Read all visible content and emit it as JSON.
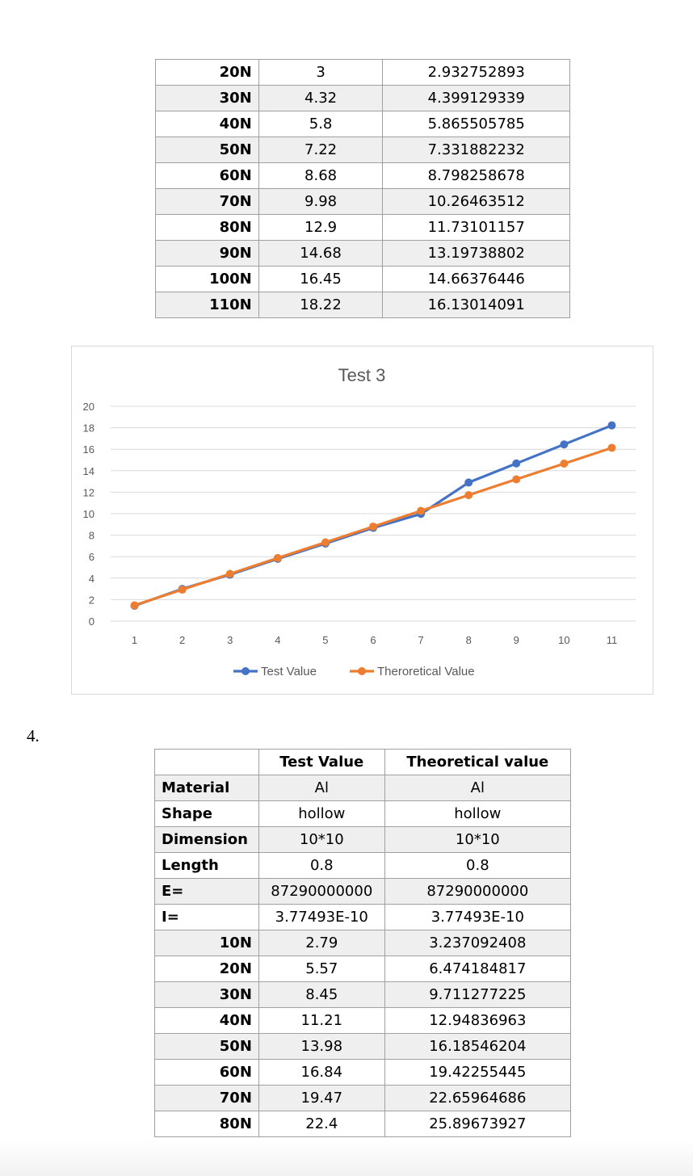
{
  "table_top": {
    "rows": [
      {
        "label": "20N",
        "test": "3",
        "theory": "2.932752893"
      },
      {
        "label": "30N",
        "test": "4.32",
        "theory": "4.399129339"
      },
      {
        "label": "40N",
        "test": "5.8",
        "theory": "5.865505785"
      },
      {
        "label": "50N",
        "test": "7.22",
        "theory": "7.331882232"
      },
      {
        "label": "60N",
        "test": "8.68",
        "theory": "8.798258678"
      },
      {
        "label": "70N",
        "test": "9.98",
        "theory": "10.26463512"
      },
      {
        "label": "80N",
        "test": "12.9",
        "theory": "11.73101157"
      },
      {
        "label": "90N",
        "test": "14.68",
        "theory": "13.19738802"
      },
      {
        "label": "100N",
        "test": "16.45",
        "theory": "14.66376446"
      },
      {
        "label": "110N",
        "test": "18.22",
        "theory": "16.13014091"
      }
    ]
  },
  "chart_data": {
    "type": "line",
    "title": "Test 3",
    "x": [
      1,
      2,
      3,
      4,
      5,
      6,
      7,
      8,
      9,
      10,
      11
    ],
    "x_tick_labels": [
      "1",
      "2",
      "3",
      "4",
      "5",
      "6",
      "7",
      "8",
      "9",
      "10",
      "11"
    ],
    "y_tick_labels": [
      "0",
      "2",
      "4",
      "6",
      "8",
      "10",
      "12",
      "14",
      "16",
      "18",
      "20"
    ],
    "ylim": [
      0,
      20
    ],
    "grid": true,
    "legend_position": "bottom",
    "series": [
      {
        "name": "Test Value",
        "color": "#4472C4",
        "values": [
          1.43,
          3,
          4.32,
          5.8,
          7.22,
          8.68,
          9.98,
          12.9,
          14.68,
          16.45,
          18.22
        ]
      },
      {
        "name": "Theroretical Value",
        "color": "#ED7D31",
        "values": [
          1.47,
          2.93,
          4.4,
          5.87,
          7.33,
          8.8,
          10.26,
          11.73,
          13.2,
          14.66,
          16.13
        ]
      }
    ]
  },
  "section_number": "4.",
  "table_bottom": {
    "header": {
      "test": "Test Value",
      "theory": "Theoretical value"
    },
    "props": [
      {
        "label": "Material",
        "test": "Al",
        "theory": "Al"
      },
      {
        "label": "Shape",
        "test": "hollow",
        "theory": "hollow"
      },
      {
        "label": "Dimension",
        "test": "10*10",
        "theory": "10*10"
      },
      {
        "label": "Length",
        "test": "0.8",
        "theory": "0.8"
      },
      {
        "label": "E=",
        "test": "87290000000",
        "theory": "87290000000"
      },
      {
        "label": "I=",
        "test": "3.77493E-10",
        "theory": "3.77493E-10"
      }
    ],
    "loads": [
      {
        "label": "10N",
        "test": "2.79",
        "theory": "3.237092408"
      },
      {
        "label": "20N",
        "test": "5.57",
        "theory": "6.474184817"
      },
      {
        "label": "30N",
        "test": "8.45",
        "theory": "9.711277225"
      },
      {
        "label": "40N",
        "test": "11.21",
        "theory": "12.94836963"
      },
      {
        "label": "50N",
        "test": "13.98",
        "theory": "16.18546204"
      },
      {
        "label": "60N",
        "test": "16.84",
        "theory": "19.42255445"
      },
      {
        "label": "70N",
        "test": "19.47",
        "theory": "22.65964686"
      },
      {
        "label": "80N",
        "test": "22.4",
        "theory": "25.89673927"
      }
    ]
  }
}
